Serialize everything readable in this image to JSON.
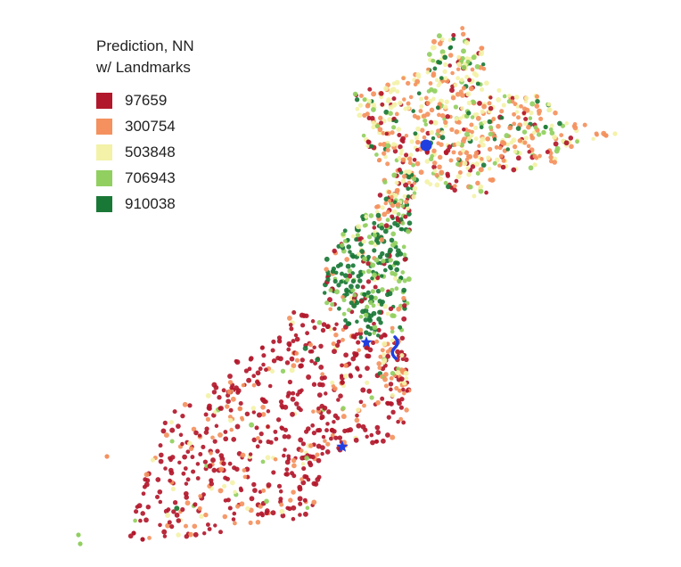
{
  "legend": {
    "title": "Prediction, NN\nw/ Landmarks",
    "items": [
      {
        "label": "97659",
        "color": "#b2182b"
      },
      {
        "label": "300754",
        "color": "#f4915e"
      },
      {
        "label": "503848",
        "color": "#f3f2a8"
      },
      {
        "label": "706943",
        "color": "#91cf60"
      },
      {
        "label": "910038",
        "color": "#1a7837"
      }
    ]
  },
  "landmarks": {
    "marker_color": "#1f3fe0",
    "circle_icon": "circle-landmark-icon",
    "star_icon": "star-landmark-icon",
    "wave_icon": "wave-landmark-icon"
  }
}
